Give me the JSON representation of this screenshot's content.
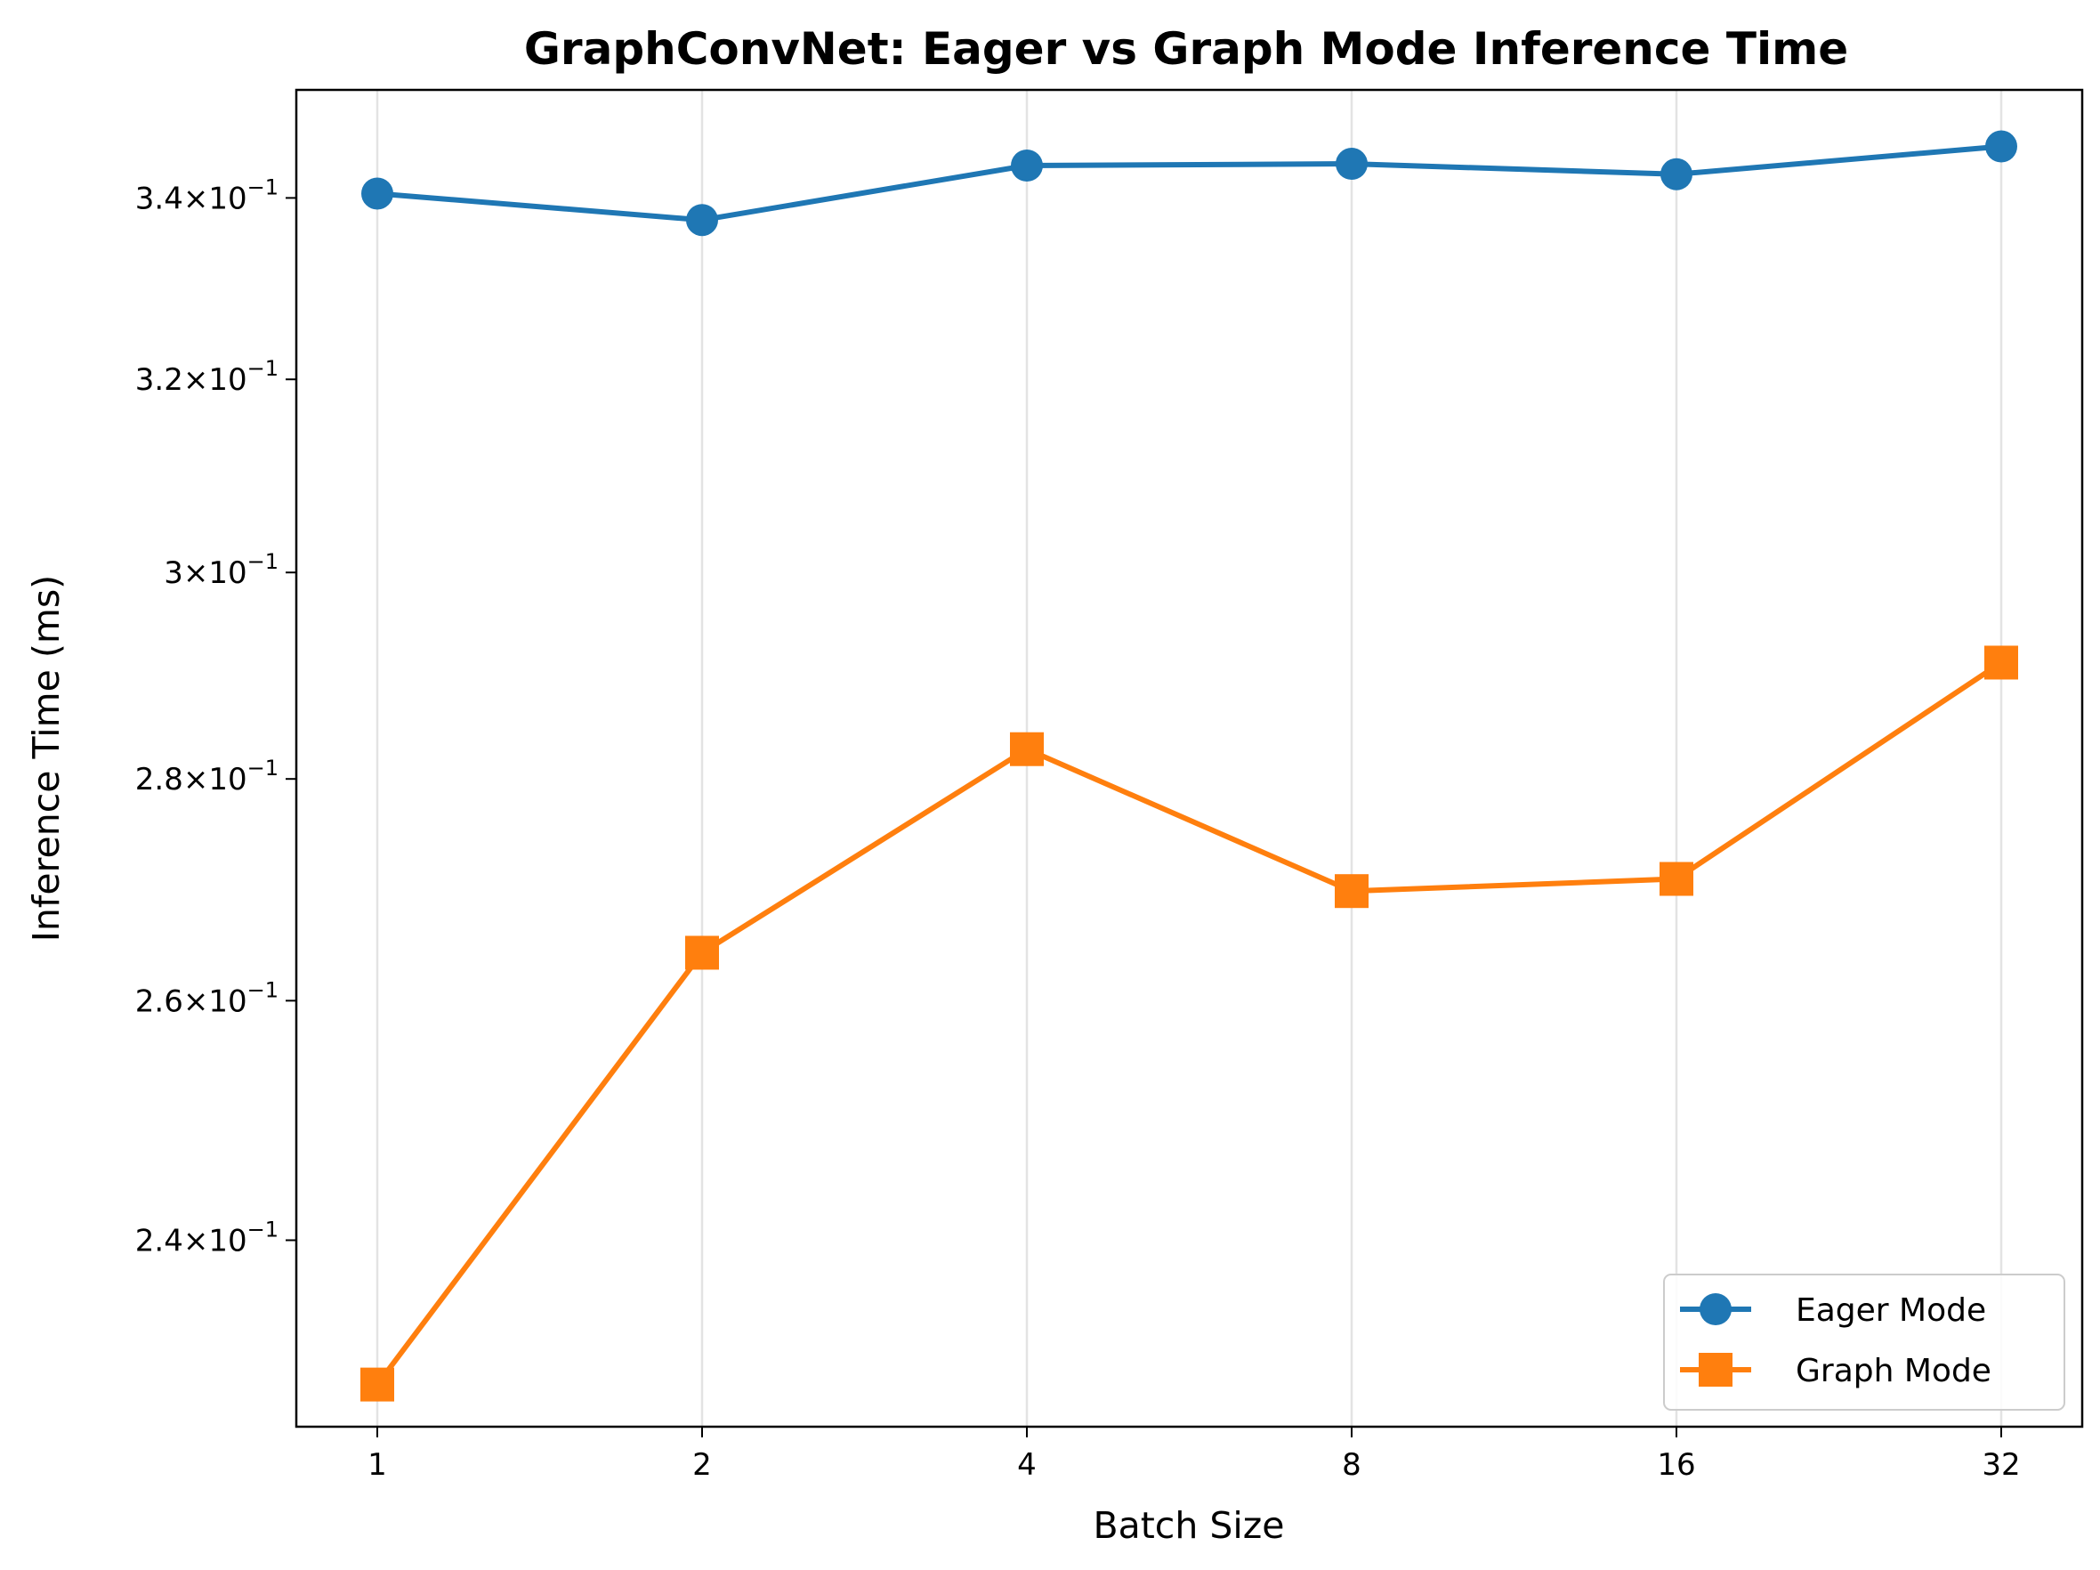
{
  "chart_data": {
    "type": "line",
    "title": "GraphConvNet: Eager vs Graph Mode Inference Time",
    "xlabel": "Batch Size",
    "ylabel": "Inference Time (ms)",
    "x_scale": "log2",
    "y_scale": "log",
    "categories": [
      "1",
      "2",
      "4",
      "8",
      "16",
      "32"
    ],
    "x": [
      1,
      2,
      4,
      8,
      16,
      32
    ],
    "ylim": [
      0.2255,
      0.3525
    ],
    "y_ticks": [
      {
        "value": 0.24,
        "mantissa": "2.4",
        "exp": "−1"
      },
      {
        "value": 0.26,
        "mantissa": "2.6",
        "exp": "−1"
      },
      {
        "value": 0.28,
        "mantissa": "2.8",
        "exp": "−1"
      },
      {
        "value": 0.3,
        "mantissa": "3",
        "exp": "−1"
      },
      {
        "value": 0.32,
        "mantissa": "3.2",
        "exp": "−1"
      },
      {
        "value": 0.34,
        "mantissa": "3.4",
        "exp": "−1"
      }
    ],
    "grid": "vertical",
    "legend_position": "bottom-right",
    "series": [
      {
        "name": "Eager Mode",
        "color": "#1f77b4",
        "marker": "circle",
        "values": [
          0.3405,
          0.3375,
          0.3437,
          0.3439,
          0.3427,
          0.3459
        ]
      },
      {
        "name": "Graph Mode",
        "color": "#ff7f0e",
        "marker": "square",
        "values": [
          0.2287,
          0.2642,
          0.2828,
          0.2697,
          0.2708,
          0.2911
        ]
      }
    ]
  }
}
